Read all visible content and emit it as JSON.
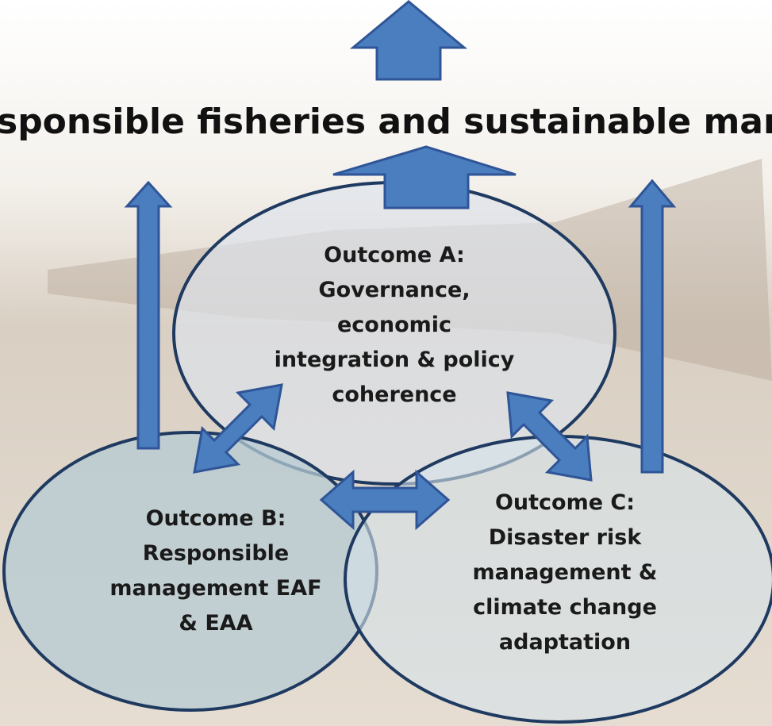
{
  "heading": "sponsible fisheries and sustainable mana",
  "outcomes": [
    {
      "lines": [
        "Outcome A:",
        "Governance,",
        "economic",
        "integration & policy",
        "coherence"
      ]
    },
    {
      "lines": [
        "Outcome B:",
        "Responsible",
        "management EAF",
        "& EAA"
      ]
    },
    {
      "lines": [
        "Outcome C:",
        "Disaster risk",
        "management &",
        "climate change",
        "adaptation"
      ]
    }
  ]
}
